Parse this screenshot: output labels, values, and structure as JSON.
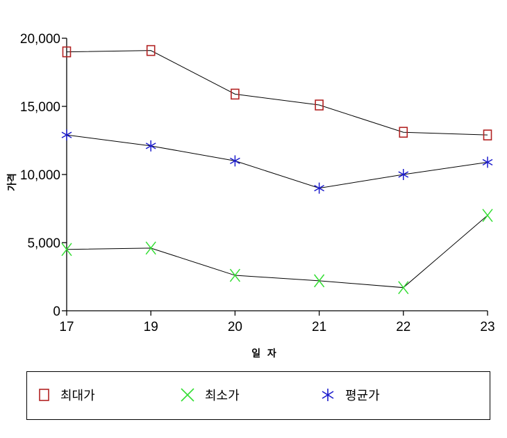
{
  "chart_data": {
    "type": "line",
    "categories": [
      "17",
      "19",
      "20",
      "21",
      "22",
      "23"
    ],
    "xlabel": "일  자",
    "ylabel": "가격",
    "ylim": [
      0,
      20000
    ],
    "yticks": [
      0,
      5000,
      10000,
      15000,
      20000
    ],
    "ytick_labels": [
      "0",
      "5,000",
      "10,000",
      "15,000",
      "20,000"
    ],
    "grid": false,
    "legend_position": "bottom",
    "series": [
      {
        "name": "최대가",
        "values": [
          19000,
          19100,
          15900,
          15100,
          13100,
          12900
        ],
        "color": "#b22222",
        "marker": "square"
      },
      {
        "name": "최소가",
        "values": [
          4500,
          4600,
          2600,
          2200,
          1700,
          7000
        ],
        "color": "#33dd33",
        "marker": "x"
      },
      {
        "name": "평균가",
        "values": [
          12900,
          12100,
          11000,
          9000,
          10000,
          10900
        ],
        "color": "#1a1acc",
        "marker": "asterisk"
      }
    ]
  }
}
